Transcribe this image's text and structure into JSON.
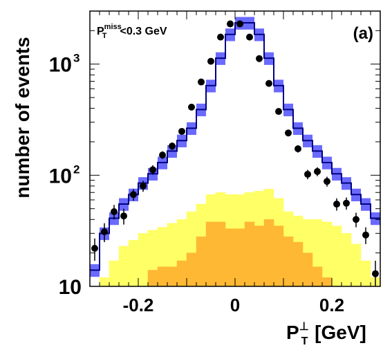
{
  "chart_data": {
    "type": "bar",
    "panel_label": "(a)",
    "annotation": {
      "base": "P",
      "sup": "miss",
      "sub": "T",
      "rest": "<0.3 GeV"
    },
    "ylabel": "number of events",
    "xlabel": {
      "base": "P",
      "sup": "⊥",
      "sub": "T",
      "rest": " [GeV]"
    },
    "xlim": [
      -0.3,
      0.3
    ],
    "ylim": [
      10,
      3000
    ],
    "y_scale": "log",
    "x_ticks": [
      {
        "value": -0.2,
        "label": "-0.2"
      },
      {
        "value": 0,
        "label": "0"
      },
      {
        "value": 0.2,
        "label": "0.2"
      }
    ],
    "y_ticks": [
      {
        "value": 10,
        "label": "10"
      },
      {
        "value": 100,
        "label": "10",
        "exp": "2"
      },
      {
        "value": 1000,
        "label": "10",
        "exp": "3"
      }
    ],
    "bin_edges": [
      -0.3,
      -0.28,
      -0.26,
      -0.24,
      -0.22,
      -0.2,
      -0.18,
      -0.16,
      -0.14,
      -0.12,
      -0.1,
      -0.08,
      -0.06,
      -0.04,
      -0.02,
      0,
      0.02,
      0.04,
      0.06,
      0.08,
      0.1,
      0.12,
      0.14,
      0.16,
      0.18,
      0.2,
      0.22,
      0.24,
      0.26,
      0.28,
      0.3
    ],
    "colors": {
      "total_line": "#000080",
      "total_band": "#6a6aff",
      "background_light": "#ffff66",
      "background_dark": "#ffb833"
    },
    "series": [
      {
        "role": "total",
        "values": [
          14,
          30,
          41,
          55,
          67,
          85,
          103,
          130,
          165,
          205,
          265,
          390,
          640,
          1130,
          1850,
          2350,
          2350,
          1850,
          1130,
          640,
          390,
          265,
          205,
          165,
          130,
          103,
          85,
          67,
          55,
          41
        ],
        "band_rel": 0.13
      },
      {
        "role": "background-light",
        "values": [
          10,
          12,
          17,
          23,
          26,
          30,
          32,
          34,
          37,
          40,
          47,
          55,
          67,
          70,
          67,
          67,
          70,
          72,
          75,
          62,
          47,
          43,
          40,
          40,
          38,
          35,
          30,
          24,
          17,
          12
        ]
      },
      {
        "role": "background-dark",
        "values": [
          9,
          9,
          9,
          9,
          9,
          10,
          14,
          15,
          15,
          17,
          20,
          28,
          38,
          38,
          33,
          33,
          38,
          35,
          40,
          35,
          28,
          25,
          20,
          15,
          12,
          9,
          9,
          9,
          9,
          9
        ]
      },
      {
        "role": "data",
        "x": [
          -0.29,
          -0.27,
          -0.25,
          -0.23,
          -0.21,
          -0.19,
          -0.17,
          -0.15,
          -0.13,
          -0.11,
          -0.09,
          -0.07,
          -0.05,
          -0.03,
          -0.01,
          0.01,
          0.03,
          0.05,
          0.07,
          0.09,
          0.11,
          0.13,
          0.15,
          0.17,
          0.19,
          0.21,
          0.23,
          0.25,
          0.27,
          0.29
        ],
        "y": [
          22,
          31,
          47,
          43,
          67,
          80,
          112,
          152,
          183,
          248,
          410,
          690,
          1060,
          1750,
          2300,
          2300,
          1750,
          1120,
          670,
          375,
          240,
          173,
          102,
          108,
          88,
          55,
          56,
          40,
          29,
          13
        ],
        "yerr": [
          5,
          6,
          7,
          7,
          8,
          9,
          11,
          12,
          14,
          16,
          20,
          26,
          33,
          42,
          48,
          48,
          42,
          33,
          26,
          19,
          15,
          13,
          10,
          10,
          9,
          7,
          7,
          6,
          5,
          4
        ]
      }
    ]
  }
}
